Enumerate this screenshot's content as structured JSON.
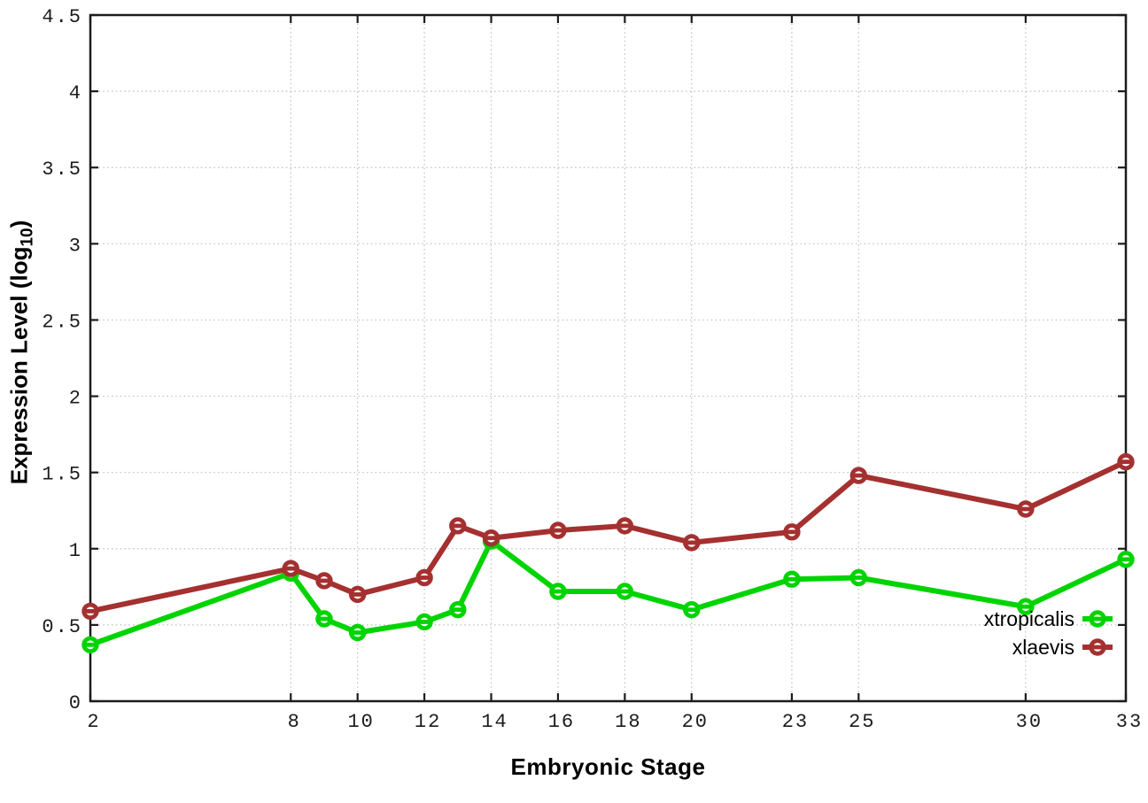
{
  "figure": {
    "background": "#ffffff",
    "xlabel": "Embryonic Stage",
    "ylabel_pre": "Expression Level (log",
    "ylabel_sub": "10",
    "ylabel_post": ")"
  },
  "colors": {
    "border": "#1c1c1c",
    "grid": "#bdbdbd",
    "tick_text": "#1c1c1c",
    "xtropicalis": "#00d400",
    "xlaevis": "#a53030"
  },
  "chart_data": {
    "type": "line",
    "title": "",
    "x": [
      2,
      8,
      9,
      10,
      12,
      13,
      14,
      16,
      18,
      20,
      23,
      25,
      30,
      33
    ],
    "series": [
      {
        "name": "xtropicalis",
        "color": "#00d400",
        "values": [
          0.37,
          0.84,
          0.54,
          0.45,
          0.52,
          0.6,
          1.05,
          0.72,
          0.72,
          0.6,
          0.8,
          0.81,
          0.62,
          0.93
        ]
      },
      {
        "name": "xlaevis",
        "color": "#a53030",
        "values": [
          0.59,
          0.87,
          0.79,
          0.7,
          0.81,
          1.15,
          1.07,
          1.12,
          1.15,
          1.04,
          1.11,
          1.48,
          1.26,
          1.57
        ]
      }
    ],
    "xlabel": "Embryonic Stage",
    "ylabel": "Expression Level (log10)",
    "xlim": [
      2,
      33
    ],
    "ylim": [
      0,
      4.5
    ],
    "xticks": [
      2,
      8,
      10,
      12,
      14,
      16,
      18,
      20,
      23,
      25,
      30,
      33
    ],
    "yticks": [
      0,
      0.5,
      1,
      1.5,
      2,
      2.5,
      3,
      3.5,
      4,
      4.5
    ],
    "ytick_labels": [
      "0",
      "0.5",
      "1",
      "1.5",
      "2",
      "2.5",
      "3",
      "3.5",
      "4",
      "4.5"
    ],
    "grid": true,
    "grid_style": "dotted",
    "legend_position": "inside-bottom-right",
    "marker": "open-circle-hbar"
  }
}
